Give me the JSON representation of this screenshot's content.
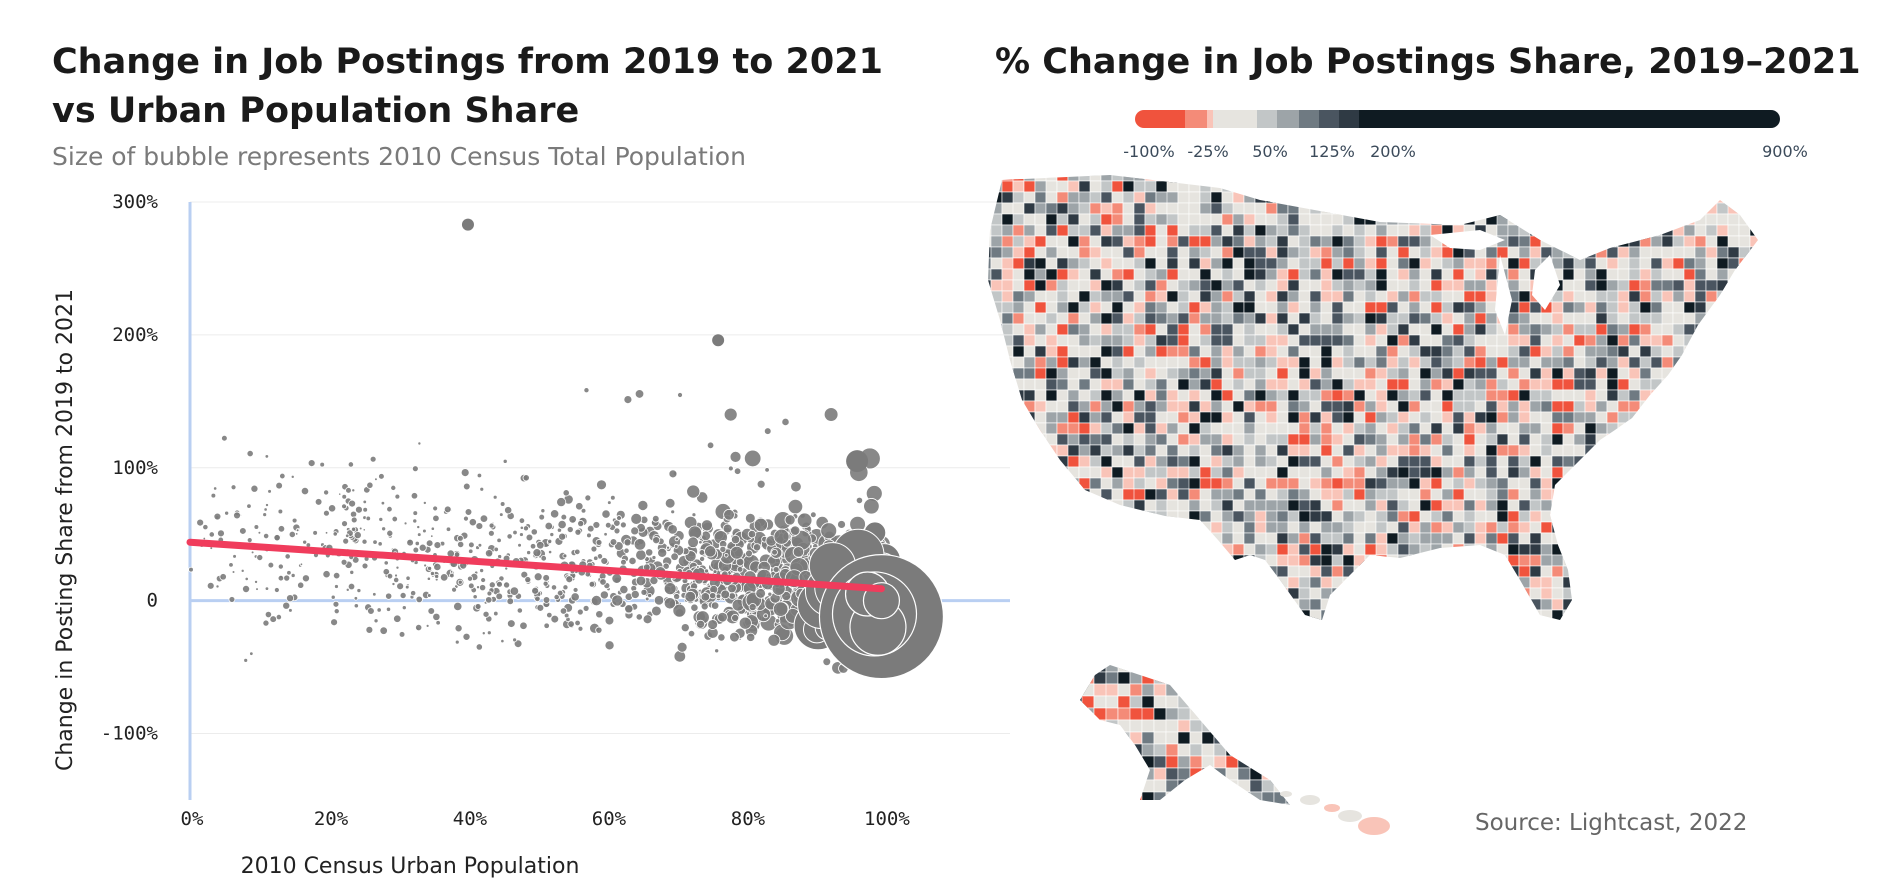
{
  "left_panel": {
    "title_line1": "Change in Job Postings from 2019 to 2021",
    "title_line2": "vs Urban Population Share",
    "subtitle": "Size of bubble represents 2010 Census Total Population"
  },
  "right_panel": {
    "title": "% Change in Job Postings Share, 2019–2021",
    "source": "Source: Lightcast, 2022",
    "legend": {
      "labels": [
        "-100%",
        "-25%",
        "50%",
        "125%",
        "200%",
        "900%"
      ],
      "colors": {
        "strong_negative": "#f0533d",
        "negative": "#f48b78",
        "slight_negative": "#f9c4b8",
        "neutral": "#e6e4df",
        "light_gray": "#c2c6c7",
        "mid_gray": "#9da4a8",
        "slate": "#6f7a82",
        "dark_slate": "#4a5560",
        "darker": "#2f3a44",
        "darkest": "#0f1b22"
      }
    }
  },
  "chart_data": {
    "type": "scatter",
    "xlabel": "2010 Census Urban Population",
    "ylabel": "Change in Posting Share from 2019 to 2021",
    "xlim": [
      0,
      1.18
    ],
    "ylim": [
      -1.5,
      3.0
    ],
    "x_ticks": [
      0,
      0.2,
      0.4,
      0.6,
      0.8,
      1.0
    ],
    "x_tick_labels": [
      "0%",
      "20%",
      "40%",
      "60%",
      "80%",
      "100%"
    ],
    "y_ticks": [
      3.0,
      2.0,
      1.0,
      0,
      -1.0
    ],
    "y_tick_labels": [
      "300%",
      "200%",
      "100%",
      "0",
      "-100%"
    ],
    "trend_line": {
      "x": [
        0,
        0.995
      ],
      "y": [
        0.44,
        0.09
      ],
      "color": "#f03c5c"
    },
    "bubble_color": "#7b7b7b",
    "notable_points": [
      {
        "x": 0.4,
        "y": 2.83
      },
      {
        "x": 0.76,
        "y": 1.96
      },
      {
        "x": 0.96,
        "y": 1.05
      },
      {
        "x": 0.995,
        "y": -0.12
      }
    ]
  }
}
